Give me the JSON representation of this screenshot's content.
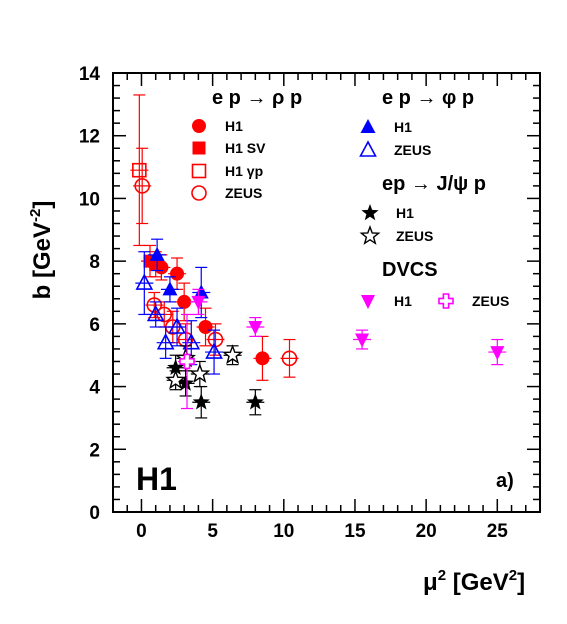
{
  "chart_data": {
    "type": "scatter",
    "title": "",
    "xlabel_main": "μ",
    "xlabel_sup": "2",
    "xlabel_unit": "[GeV",
    "xlabel_unit_sup": "2",
    "xlabel_close": "]",
    "ylabel_main": "b [GeV",
    "ylabel_sup": "-2",
    "ylabel_close": "]",
    "xlim": [
      -2,
      28
    ],
    "ylim": [
      0,
      14
    ],
    "x_ticks": [
      0,
      5,
      10,
      15,
      20,
      25
    ],
    "y_ticks": [
      0,
      2,
      4,
      6,
      8,
      10,
      12,
      14
    ],
    "experiment_label": "H1",
    "panel_label": "a)",
    "legend": {
      "rho_header": "e p → ρ p",
      "phi_header": "e p → φ p",
      "jpsi_header": "ep → J/ψ p",
      "dvcs_header": "DVCS",
      "entries": {
        "rho_h1": "H1",
        "rho_h1sv": "H1 SV",
        "rho_h1gp": "H1 γp",
        "rho_zeus": "ZEUS",
        "phi_h1": "H1",
        "phi_zeus": "ZEUS",
        "jpsi_h1": "H1",
        "jpsi_zeus": "ZEUS",
        "dvcs_h1": "H1",
        "dvcs_zeus": "ZEUS"
      }
    },
    "colors": {
      "rho": "#ff0000",
      "phi": "#0000ff",
      "jpsi": "#000000",
      "dvcs": "#ff00ff"
    },
    "series": [
      {
        "id": "rho_h1",
        "marker": "circle-filled",
        "color": "#ff0000",
        "points": [
          [
            1.4,
            7.8,
            0.4
          ],
          [
            2.5,
            7.6,
            0.5
          ],
          [
            3.0,
            6.7,
            0.6
          ],
          [
            4.5,
            5.9,
            0.6
          ],
          [
            8.5,
            4.9,
            0.7
          ]
        ]
      },
      {
        "id": "rho_h1sv",
        "marker": "square-filled",
        "color": "#ff0000",
        "points": [
          [
            0.6,
            8.0,
            0.5
          ],
          [
            1.0,
            7.9,
            0.4
          ]
        ]
      },
      {
        "id": "rho_h1gp",
        "marker": "square-open",
        "color": "#ff0000",
        "points": [
          [
            -0.15,
            10.9,
            2.4
          ]
        ]
      },
      {
        "id": "rho_zeus",
        "marker": "circle-open",
        "color": "#ff0000",
        "points": [
          [
            0.05,
            10.4,
            1.2
          ],
          [
            0.9,
            6.6,
            0.4
          ],
          [
            1.6,
            6.3,
            0.4
          ],
          [
            2.2,
            5.9,
            0.5
          ],
          [
            3.1,
            5.5,
            0.5
          ],
          [
            5.2,
            5.5,
            0.5
          ],
          [
            10.4,
            4.9,
            0.6
          ]
        ]
      },
      {
        "id": "phi_h1",
        "marker": "triangle-up-filled",
        "color": "#0000ff",
        "points": [
          [
            1.1,
            8.2,
            0.5
          ],
          [
            2.0,
            7.1,
            0.4
          ],
          [
            4.2,
            7.0,
            0.8
          ]
        ]
      },
      {
        "id": "phi_zeus",
        "marker": "triangle-up-open",
        "color": "#0000ff",
        "points": [
          [
            0.2,
            7.3,
            1.0
          ],
          [
            1.0,
            6.3,
            0.4
          ],
          [
            1.7,
            5.4,
            0.5
          ],
          [
            2.5,
            5.9,
            0.6
          ],
          [
            3.5,
            5.4,
            0.7
          ],
          [
            5.1,
            5.1,
            0.7
          ]
        ]
      },
      {
        "id": "jpsi_h1",
        "marker": "star-filled",
        "color": "#000000",
        "points": [
          [
            2.4,
            4.6,
            0.4
          ],
          [
            3.1,
            4.1,
            0.4
          ],
          [
            4.2,
            3.5,
            0.5
          ],
          [
            8.0,
            3.5,
            0.4
          ]
        ]
      },
      {
        "id": "jpsi_zeus",
        "marker": "star-open",
        "color": "#000000",
        "points": [
          [
            2.4,
            4.2,
            0.3
          ],
          [
            3.1,
            4.9,
            0.4
          ],
          [
            4.1,
            4.4,
            0.4
          ],
          [
            6.4,
            5.0,
            0.3
          ]
        ]
      },
      {
        "id": "dvcs_h1",
        "marker": "triangle-down-filled",
        "color": "#ff00ff",
        "points": [
          [
            4.0,
            6.7,
            0.4
          ],
          [
            8.0,
            5.9,
            0.3
          ],
          [
            15.5,
            5.5,
            0.3
          ],
          [
            25.0,
            5.1,
            0.4
          ]
        ]
      },
      {
        "id": "dvcs_zeus",
        "marker": "cross-open",
        "color": "#ff00ff",
        "points": [
          [
            3.2,
            4.8,
            1.5
          ]
        ]
      }
    ]
  }
}
